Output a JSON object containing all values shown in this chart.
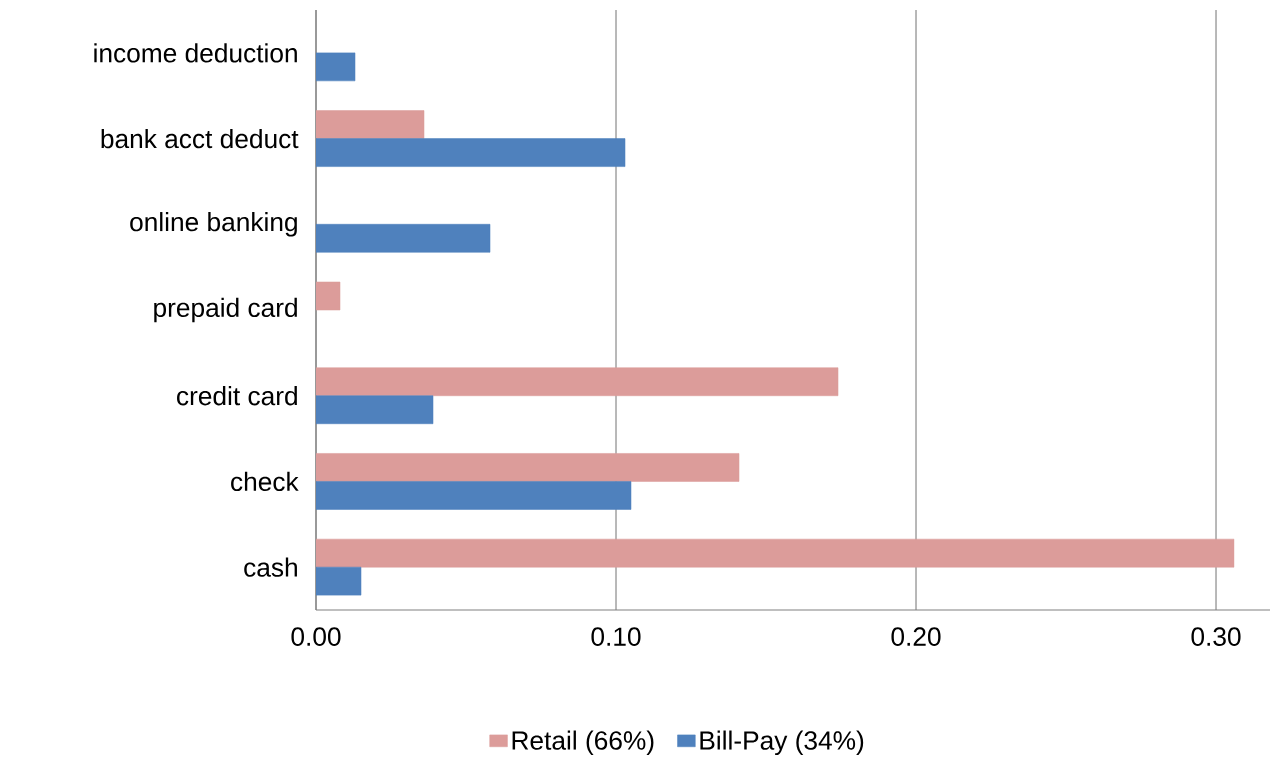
{
  "chart_data": {
    "type": "bar",
    "orientation": "horizontal",
    "categories": [
      "income deduction",
      "bank acct deduct",
      "online banking",
      "prepaid card",
      "credit card",
      "check",
      "cash"
    ],
    "series": [
      {
        "name": "Retail (66%)",
        "color": "#dc9c9a",
        "values": [
          null,
          0.036,
          null,
          0.008,
          0.174,
          0.141,
          0.306
        ]
      },
      {
        "name": "Bill-Pay (34%)",
        "color": "#4f81bd",
        "values": [
          0.013,
          0.103,
          0.058,
          null,
          0.039,
          0.105,
          0.015
        ]
      }
    ],
    "xlim": [
      0,
      0.318
    ],
    "xticks": [
      {
        "value": 0,
        "label": "0.00"
      },
      {
        "value": 0.1,
        "label": "0.10"
      },
      {
        "value": 0.2,
        "label": "0.20"
      },
      {
        "value": 0.3,
        "label": "0.30"
      }
    ],
    "grid": "x",
    "legend": "bottom"
  }
}
